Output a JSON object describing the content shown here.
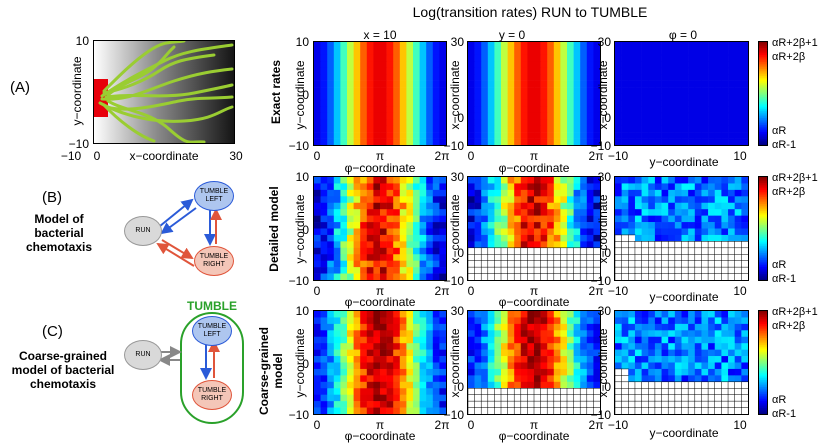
{
  "figure": {
    "main_title": "Log(transition rates) RUN to TUMBLE",
    "col_headers": [
      "x = 10",
      "y = 0",
      "φ = 0"
    ],
    "row_labels": [
      "Exact rates",
      "Detailed model",
      "Coarse-grained model"
    ],
    "panel_A": {
      "letter": "(A)",
      "xlabel": "x−coordinate",
      "ylabel": "y−coordinate",
      "x_ticks": [
        "−10",
        "0",
        "30"
      ],
      "y_ticks": [
        "10",
        "−10"
      ]
    },
    "panel_B": {
      "letter": "(B)",
      "caption": [
        "Model of",
        "bacterial",
        "chemotaxis"
      ],
      "nodes": {
        "run": "RUN",
        "tumble_left": "TUMBLE LEFT",
        "tumble_right": "TUMBLE RIGHT"
      }
    },
    "panel_C": {
      "letter": "(C)",
      "caption": [
        "Coarse-grained",
        "model of bacterial",
        "chemotaxis"
      ],
      "group_label": "TUMBLE",
      "nodes": {
        "run": "RUN",
        "tumble_left": "TUMBLE LEFT",
        "tumble_right": "TUMBLE RIGHT"
      }
    },
    "axes": {
      "phi_label": "φ−coordinate",
      "y_label": "y−coordinate",
      "x_label": "x−coordinate",
      "phi_ticks": [
        "0",
        "π",
        "2π"
      ],
      "y_ticks": [
        "10",
        "0",
        "−10"
      ],
      "x_ticks": [
        "30",
        "0",
        "−10"
      ],
      "ybottom_ticks": [
        "−10",
        "0",
        "10"
      ]
    },
    "colorbar_labels": {
      "top": "αR+2β+1",
      "second": "αR+2β",
      "low": "αR",
      "bottom": "αR-1"
    },
    "colors": {
      "tumble_left_fill": "#aec6ef",
      "tumble_left_edge": "#2b5bd8",
      "tumble_right_fill": "#f4c6b8",
      "tumble_right_edge": "#e0553b",
      "run_fill": "#d9d9d9",
      "group_edge": "#2aa12a",
      "trajectory": "#9acd32"
    }
  }
}
